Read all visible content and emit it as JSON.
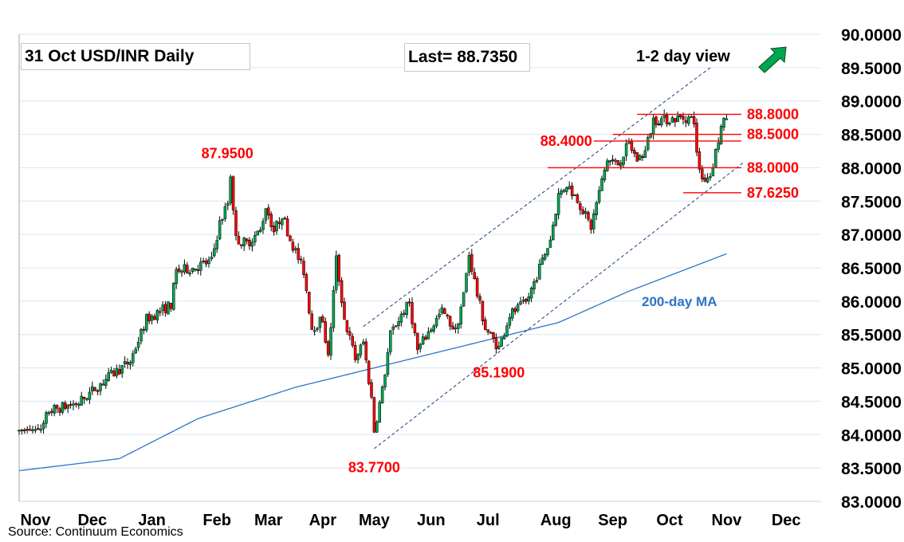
{
  "header": {
    "title": "31 Oct  USD/INR  Daily",
    "last": "Last= 88.7350",
    "view": "1-2 day view",
    "view_icon": "arrow-up-right-icon"
  },
  "source": "Source: Continuum Economics",
  "colors": {
    "up": "#00a651",
    "down": "#ff0000",
    "ma": "#2e75c6",
    "grid": "#dce6f2",
    "level": "#ff0000",
    "channel": "#1f3a7a",
    "arrow": "#00a651"
  },
  "chart_data": {
    "type": "candlestick",
    "title": "31 Oct  USD/INR  Daily",
    "note": "daily closes approximated by waypoints (trading-day index, price)",
    "ylim": [
      83.0,
      90.0
    ],
    "yticks": [
      "90.0000",
      "89.5000",
      "89.0000",
      "88.5000",
      "88.0000",
      "87.5000",
      "87.0000",
      "86.5000",
      "86.0000",
      "85.5000",
      "85.0000",
      "84.5000",
      "84.0000",
      "83.5000",
      "83.0000"
    ],
    "ytick_values": [
      90,
      89.5,
      89,
      88.5,
      88,
      87.5,
      87,
      86.5,
      86,
      85.5,
      85,
      84.5,
      84,
      83.5,
      83
    ],
    "xticks": [
      {
        "label": "Nov",
        "day": 6
      },
      {
        "label": "Dec",
        "day": 27
      },
      {
        "label": "Jan",
        "day": 49
      },
      {
        "label": "Feb",
        "day": 73
      },
      {
        "label": "Mar",
        "day": 92
      },
      {
        "label": "Apr",
        "day": 112
      },
      {
        "label": "May",
        "day": 131
      },
      {
        "label": "Jun",
        "day": 152
      },
      {
        "label": "Jul",
        "day": 173
      },
      {
        "label": "Aug",
        "day": 198
      },
      {
        "label": "Sep",
        "day": 219
      },
      {
        "label": "Oct",
        "day": 240
      },
      {
        "label": "Nov",
        "day": 261
      },
      {
        "label": "Dec",
        "day": 283
      }
    ],
    "total_days": 295,
    "price_path": [
      [
        0,
        84.07
      ],
      [
        8,
        84.08
      ],
      [
        11,
        84.36
      ],
      [
        22,
        84.48
      ],
      [
        31,
        84.8
      ],
      [
        41,
        85.1
      ],
      [
        47,
        85.73
      ],
      [
        56,
        85.95
      ],
      [
        58,
        86.45
      ],
      [
        64,
        86.5
      ],
      [
        71,
        86.6
      ],
      [
        74,
        87.17
      ],
      [
        77,
        87.47
      ],
      [
        78,
        87.9
      ],
      [
        80,
        86.93
      ],
      [
        84,
        86.87
      ],
      [
        89,
        87.05
      ],
      [
        91,
        87.43
      ],
      [
        94,
        87.05
      ],
      [
        97,
        87.3
      ],
      [
        100,
        86.93
      ],
      [
        105,
        86.45
      ],
      [
        108,
        85.6
      ],
      [
        112,
        85.73
      ],
      [
        114,
        85.14
      ],
      [
        117,
        86.63
      ],
      [
        120,
        85.73
      ],
      [
        124,
        85.14
      ],
      [
        127,
        85.38
      ],
      [
        130,
        84.54
      ],
      [
        131,
        84.06
      ],
      [
        134,
        84.66
      ],
      [
        137,
        85.5
      ],
      [
        141,
        85.8
      ],
      [
        144,
        85.97
      ],
      [
        147,
        85.26
      ],
      [
        152,
        85.6
      ],
      [
        156,
        85.85
      ],
      [
        161,
        85.55
      ],
      [
        164,
        86.1
      ],
      [
        166,
        86.7
      ],
      [
        169,
        86.1
      ],
      [
        172,
        85.6
      ],
      [
        177,
        85.3
      ],
      [
        181,
        85.8
      ],
      [
        187,
        85.97
      ],
      [
        191,
        86.39
      ],
      [
        196,
        86.93
      ],
      [
        199,
        87.59
      ],
      [
        202,
        87.75
      ],
      [
        206,
        87.53
      ],
      [
        211,
        87.11
      ],
      [
        213,
        87.47
      ],
      [
        217,
        88.12
      ],
      [
        221,
        88.06
      ],
      [
        225,
        88.36
      ],
      [
        228,
        88.12
      ],
      [
        231,
        88.24
      ],
      [
        234,
        88.72
      ],
      [
        237,
        88.72
      ],
      [
        246,
        88.75
      ],
      [
        249,
        88.72
      ],
      [
        250,
        88.18
      ],
      [
        252,
        87.83
      ],
      [
        255,
        87.89
      ],
      [
        257,
        88.24
      ],
      [
        259,
        88.6
      ],
      [
        261,
        88.735
      ]
    ],
    "ma200": {
      "label": "200-day MA",
      "points": [
        [
          0,
          83.46
        ],
        [
          37,
          83.64
        ],
        [
          66,
          84.24
        ],
        [
          102,
          84.71
        ],
        [
          131,
          85.0
        ],
        [
          169,
          85.38
        ],
        [
          199,
          85.68
        ],
        [
          225,
          86.15
        ],
        [
          261,
          86.71
        ]
      ]
    },
    "channel": {
      "lower": [
        [
          131,
          83.79
        ],
        [
          267,
          88.07
        ]
      ],
      "upper": [
        [
          127,
          85.62
        ],
        [
          255,
          89.5
        ]
      ]
    },
    "levels": [
      {
        "label": "88.8000",
        "value": 88.8,
        "from_day": 228
      },
      {
        "label": "88.5000",
        "value": 88.5,
        "from_day": 219
      },
      {
        "label": "88.4000",
        "value": 88.4,
        "from_day": 212,
        "label_side": "left"
      },
      {
        "label": "88.0000",
        "value": 88.0,
        "from_day": 195
      },
      {
        "label": "87.6250",
        "value": 87.625,
        "from_day": 245
      }
    ],
    "annotations": [
      {
        "label": "87.9500",
        "day": 78,
        "value": 87.95
      },
      {
        "label": "83.7700",
        "day": 131,
        "value": 83.77
      },
      {
        "label": "85.1900",
        "day": 177,
        "value": 85.19
      }
    ]
  }
}
